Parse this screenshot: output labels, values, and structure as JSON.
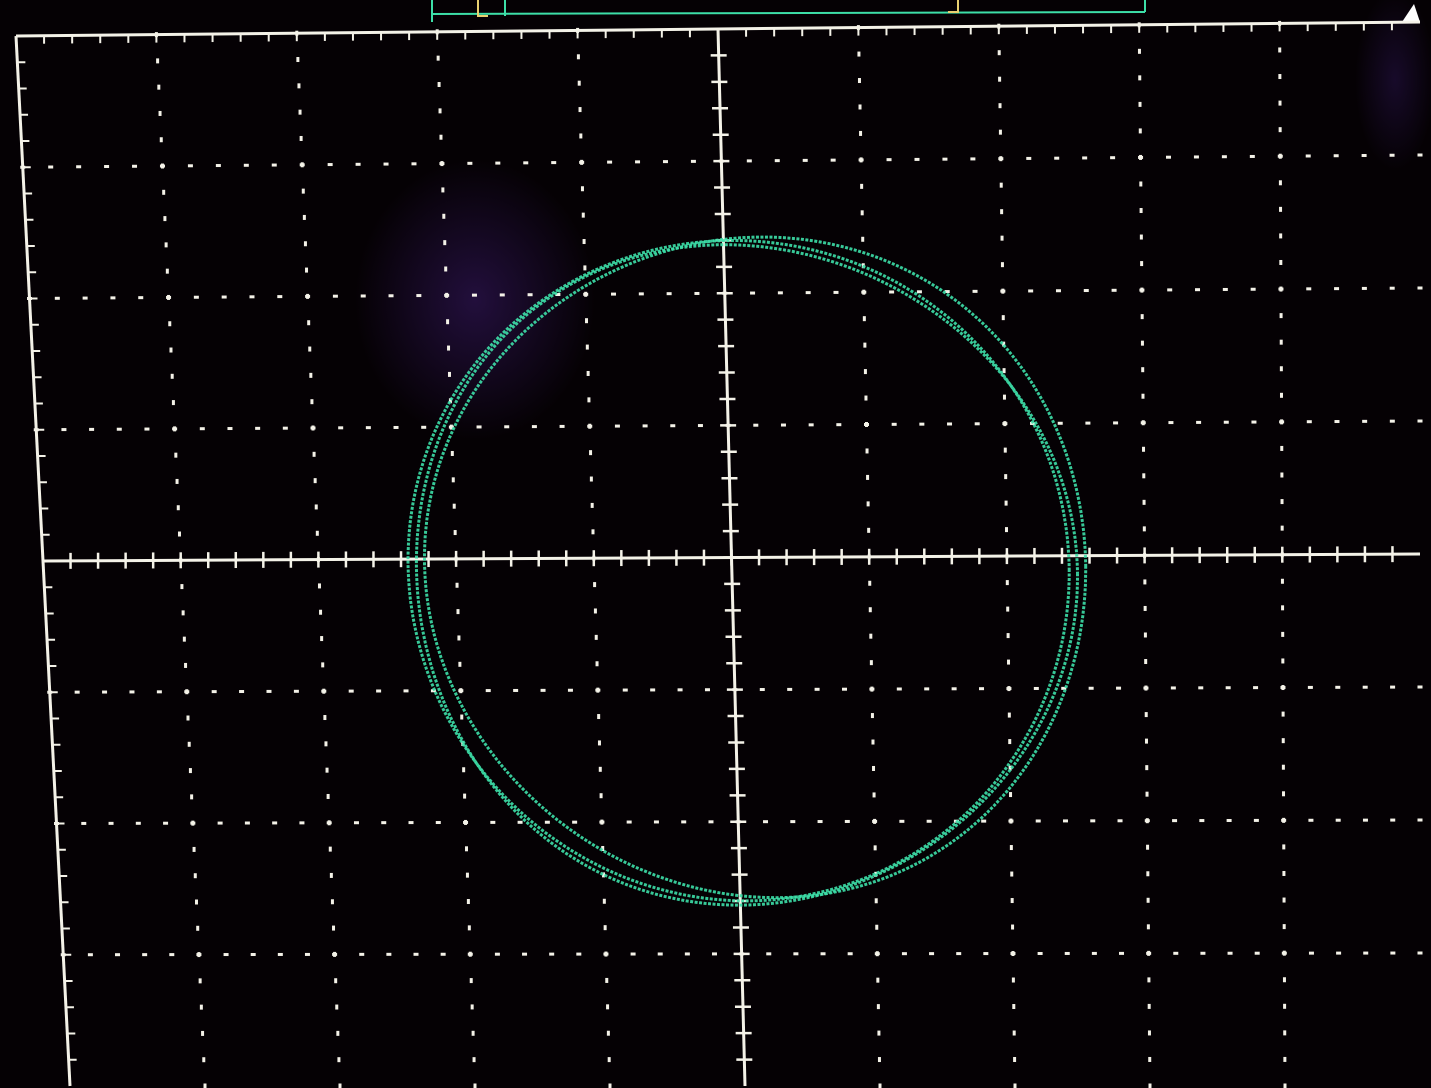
{
  "display": {
    "background_color": "#050104",
    "grid_color": "#f4f2e8",
    "trace_color": "#3ddfa8",
    "marker_color": "#e8d070",
    "glare_color": "#3a1a6a"
  },
  "graticule": {
    "divisions_x": 10,
    "divisions_y": 8,
    "minor_ticks_per_division": 5,
    "grid_style": "dotted"
  },
  "trace": {
    "shape": "lissajous-circle",
    "mode": "XY",
    "center_div": [
      0.05,
      0.1
    ],
    "radius_div": 2.45,
    "overlapping_loops": 3
  }
}
